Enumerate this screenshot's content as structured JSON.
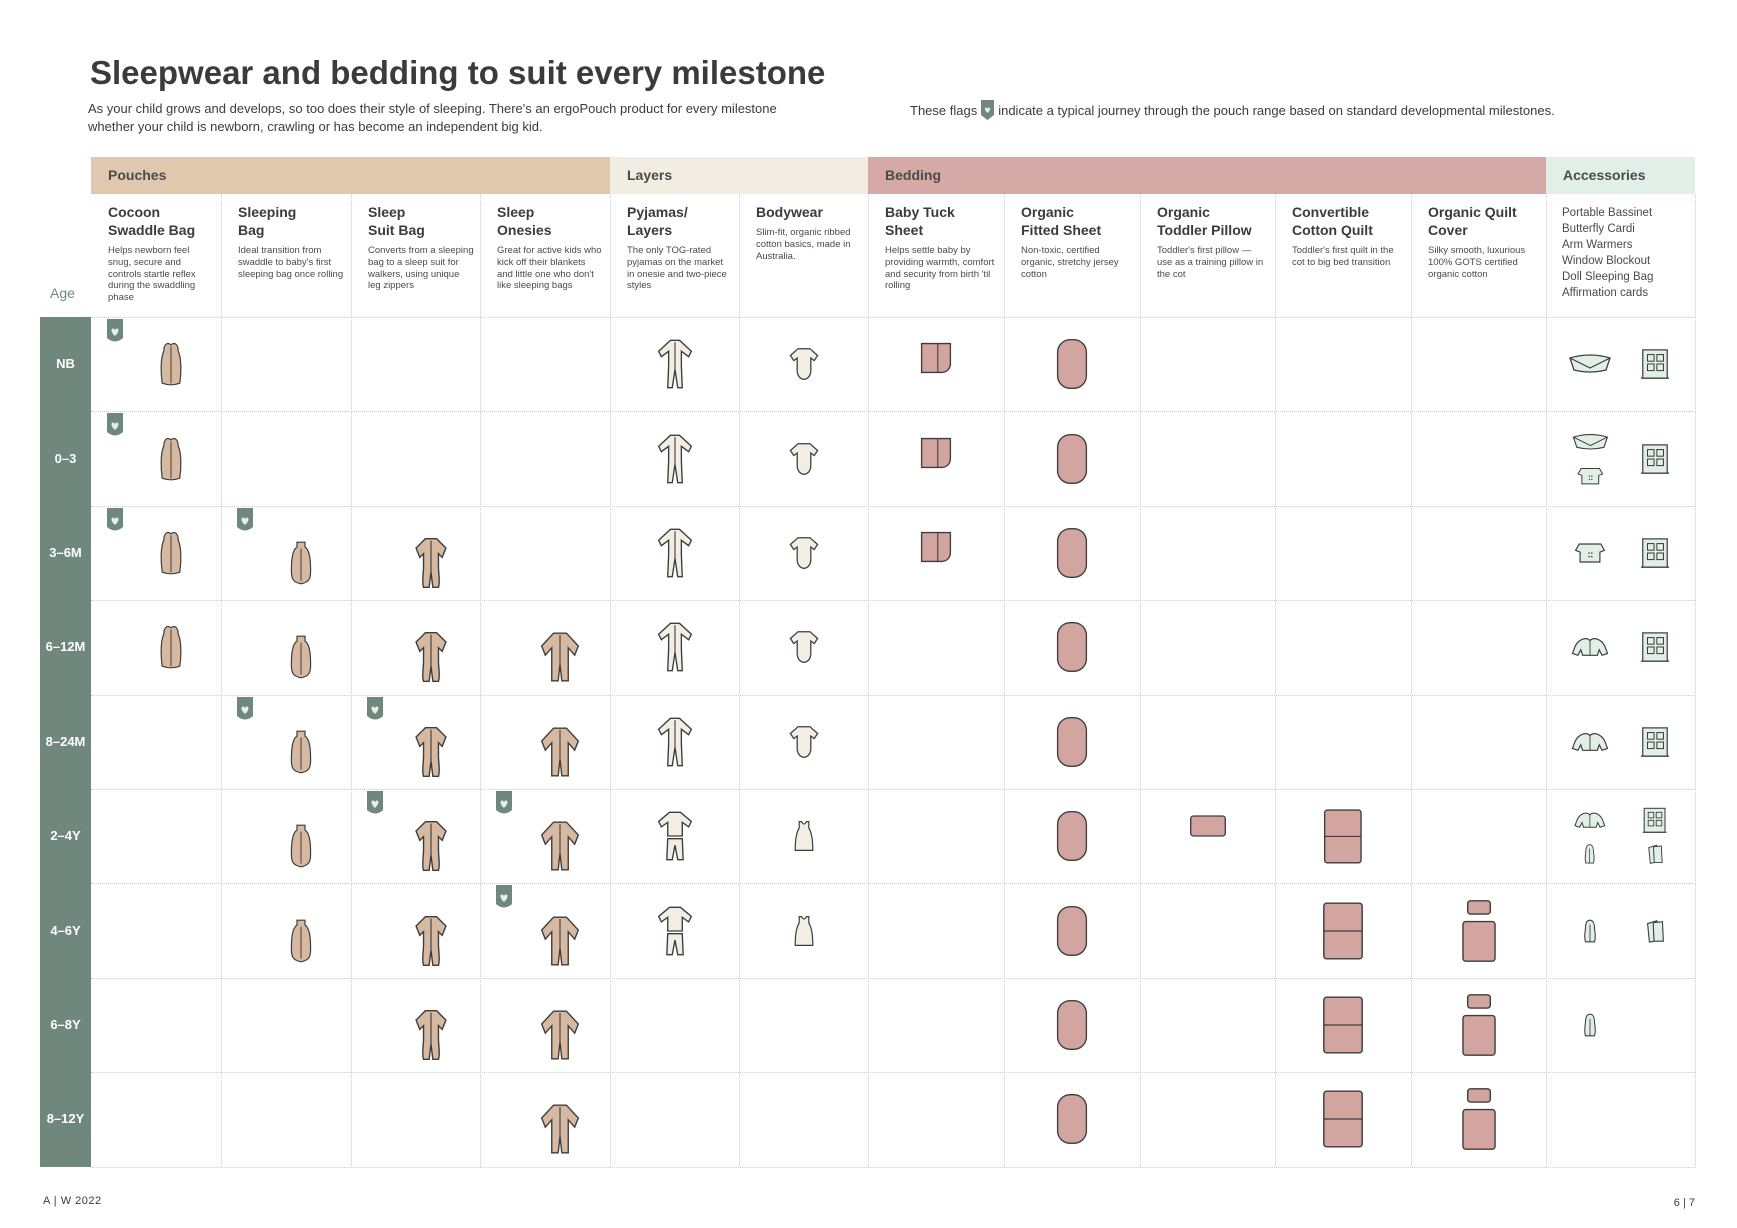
{
  "title": "Sleepwear and bedding to suit every milestone",
  "intro": "As your child grows and develops, so too does their style of sleeping. There's an ergoPouch product for every milestone whether your child is newborn, crawling or has become an independent big kid.",
  "flags_note": {
    "before": "These flags",
    "after": "indicate a typical journey through the pouch range based on standard developmental milestones."
  },
  "colors": {
    "pouches": "#e0c8ae",
    "layers": "#f1ede3",
    "bedding": "#d5aaa6",
    "accessories": "#e2efe9",
    "age": "#6f877d",
    "flag": "#6f877d",
    "pouch_fill": "#d6b9a0",
    "bedding_fill": "#d3a5a1",
    "layer_fill": "#f3eee4"
  },
  "categories": [
    {
      "label": "Pouches"
    },
    {
      "label": "Layers"
    },
    {
      "label": "Bedding"
    },
    {
      "label": "Accessories"
    }
  ],
  "products": [
    {
      "name": "Cocoon\nSwaddle Bag",
      "desc": "Helps newborn feel snug, secure and controls startle reflex during the swaddling phase"
    },
    {
      "name": "Sleeping\nBag",
      "desc": "Ideal transition from swaddle to baby's first sleeping bag once rolling"
    },
    {
      "name": "Sleep\nSuit Bag",
      "desc": "Converts from a sleeping bag to a sleep suit for walkers, using unique leg zippers"
    },
    {
      "name": "Sleep\nOnesies",
      "desc": "Great for active kids who kick off their blankets and little one who don't like sleeping bags"
    },
    {
      "name": "Pyjamas/\nLayers",
      "desc": "The only TOG-rated pyjamas on the market in onesie and two-piece styles"
    },
    {
      "name": "Bodywear",
      "desc": "Slim-fit, organic ribbed cotton basics, made in Australia."
    },
    {
      "name": "Baby Tuck\nSheet",
      "desc": "Helps settle baby by providing warmth, comfort and security from birth 'til rolling"
    },
    {
      "name": "Organic\nFitted Sheet",
      "desc": "Non-toxic, certified organic, stretchy jersey cotton"
    },
    {
      "name": "Organic\nToddler Pillow",
      "desc": "Toddler's first pillow — use as a training pillow in the cot"
    },
    {
      "name": "Convertible\nCotton Quilt",
      "desc": "Toddler's first quilt in the cot to big bed transition"
    },
    {
      "name": "Organic Quilt\nCover",
      "desc": "Silky smooth, luxurious 100% GOTS certified organic cotton"
    }
  ],
  "accessories": [
    "Portable Bassinet",
    "Butterfly Cardi",
    "Arm Warmers",
    "Window Blockout",
    "Doll Sleeping Bag",
    "Affirmation cards"
  ],
  "age_label": "Age",
  "ages": [
    "NB",
    "0–3",
    "3–6M",
    "6–12M",
    "8–24M",
    "2–4Y",
    "4–6Y",
    "6–8Y",
    "8–12Y"
  ],
  "matrix": [
    [
      "pouch",
      "",
      "",
      "",
      "onesie-light",
      "bodysuit",
      "tuck",
      "fitted",
      "",
      "",
      "",
      "bassinet",
      "window"
    ],
    [
      "pouch",
      "",
      "",
      "",
      "onesie-light",
      "bodysuit",
      "tuck",
      "fitted",
      "",
      "",
      "",
      "bassinet+cardi",
      "window"
    ],
    [
      "pouch",
      "bag",
      "suit",
      "",
      "onesie-light",
      "bodysuit",
      "tuck",
      "fitted",
      "",
      "",
      "",
      "cardi",
      "window"
    ],
    [
      "pouch",
      "bag",
      "suit",
      "onesie",
      "onesie-light",
      "bodysuit",
      "",
      "fitted",
      "",
      "",
      "",
      "warmers",
      "window"
    ],
    [
      "",
      "bag",
      "suit",
      "onesie",
      "onesie-light",
      "bodysuit",
      "",
      "fitted",
      "",
      "",
      "",
      "warmers",
      "window"
    ],
    [
      "",
      "bag",
      "suit",
      "onesie",
      "twopiece",
      "singlet",
      "",
      "fitted",
      "pillow",
      "quilt",
      "",
      "warmers+doll",
      "window+cards"
    ],
    [
      "",
      "bag",
      "suit",
      "onesie",
      "twopiece",
      "singlet",
      "",
      "fitted",
      "",
      "quilt",
      "cover",
      "doll",
      "cards"
    ],
    [
      "",
      "",
      "suit",
      "onesie",
      "",
      "",
      "",
      "fitted",
      "",
      "quilt",
      "cover",
      "doll",
      ""
    ],
    [
      "",
      "",
      "",
      "onesie",
      "",
      "",
      "",
      "fitted",
      "",
      "quilt",
      "cover",
      "",
      ""
    ]
  ],
  "flags": [
    [
      0,
      0
    ],
    [
      1,
      0
    ],
    [
      2,
      0
    ],
    [
      2,
      1
    ],
    [
      4,
      1
    ],
    [
      4,
      2
    ],
    [
      5,
      2
    ],
    [
      5,
      3
    ],
    [
      6,
      3
    ]
  ],
  "footer": {
    "left": "A | W 2022",
    "right": "6 | 7"
  }
}
